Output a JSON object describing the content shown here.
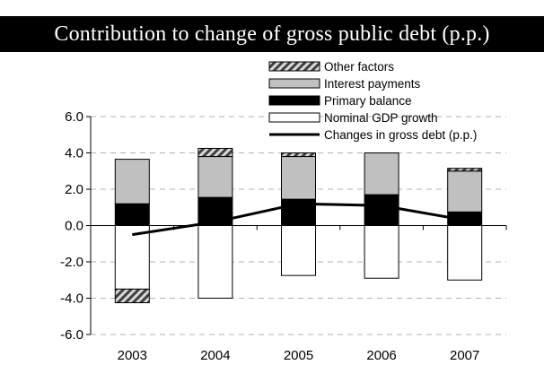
{
  "title": "Contribution to change of gross public debt (p.p.)",
  "colors": {
    "nominal_gdp_growth": "#ffffff",
    "primary_balance": "#000000",
    "interest_payments": "#c0c0c0",
    "other_factors": "hatched-gray",
    "line": "#000000",
    "grid": "#b0b0b0"
  },
  "chart_data": {
    "type": "bar",
    "stacked": true,
    "categories": [
      "2003",
      "2004",
      "2005",
      "2006",
      "2007"
    ],
    "ylim": [
      -6.0,
      6.0
    ],
    "yticks": [
      "6.0",
      "4.0",
      "2.0",
      "0.0",
      "-2.0",
      "-4.0",
      "-6.0"
    ],
    "ytick_values": [
      6,
      4,
      2,
      0,
      -2,
      -4,
      -6
    ],
    "grid": "dashed horizontal",
    "legend_placement": "top-right",
    "series": [
      {
        "name": "Nominal GDP growth",
        "kind": "bar",
        "values": [
          -3.5,
          -4.0,
          -2.75,
          -2.9,
          -3.0
        ]
      },
      {
        "name": "Primary balance",
        "kind": "bar",
        "values": [
          1.2,
          1.55,
          1.45,
          1.7,
          0.75
        ]
      },
      {
        "name": "Interest payments",
        "kind": "bar",
        "values": [
          2.45,
          2.25,
          2.35,
          2.3,
          2.25
        ]
      },
      {
        "name": "Other factors",
        "kind": "bar",
        "values": [
          -0.75,
          0.45,
          0.2,
          0.0,
          0.15
        ]
      },
      {
        "name": "Changes in gross debt (p.p.)",
        "kind": "line",
        "values": [
          -0.5,
          0.2,
          1.2,
          1.1,
          0.3
        ]
      }
    ],
    "legend": [
      "Other factors",
      "Interest payments",
      "Primary balance",
      "Nominal GDP growth",
      "Changes in gross debt (p.p.)"
    ]
  }
}
